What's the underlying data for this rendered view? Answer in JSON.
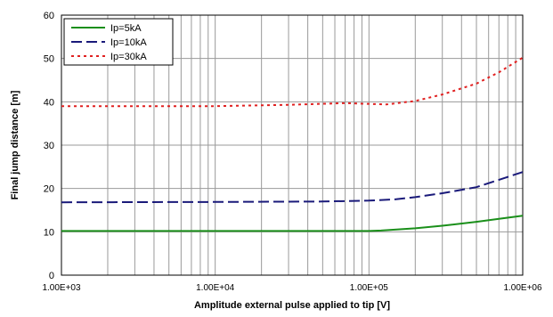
{
  "chart_data": {
    "type": "line",
    "title": "",
    "xlabel": "Amplitude external pulse applied to tip [V]",
    "ylabel": "Final jump distance  [m]",
    "xscale": "log",
    "xlim": [
      1000,
      1000000
    ],
    "ylim": [
      0,
      60
    ],
    "x_tick_values": [
      1000,
      10000,
      100000,
      1000000
    ],
    "x_tick_labels": [
      "1.00E+03",
      "1.00E+04",
      "1.00E+05",
      "1.00E+06"
    ],
    "y_tick_values": [
      0,
      10,
      20,
      30,
      40,
      50,
      60
    ],
    "y_tick_labels": [
      "0",
      "10",
      "20",
      "30",
      "40",
      "50",
      "60"
    ],
    "grid": true,
    "legend_position": "top-left",
    "series": [
      {
        "name": "Ip=5kA",
        "color": "#1a8f1a",
        "style": "solid",
        "x": [
          1000,
          10000,
          50000,
          100000,
          120000,
          200000,
          300000,
          500000,
          700000,
          1000000
        ],
        "y": [
          10.2,
          10.2,
          10.2,
          10.2,
          10.3,
          10.8,
          11.4,
          12.3,
          13.0,
          13.7
        ]
      },
      {
        "name": "Ip=10kA",
        "color": "#1a1a7a",
        "style": "dashed",
        "x": [
          1000,
          10000,
          50000,
          100000,
          150000,
          200000,
          300000,
          500000,
          700000,
          1000000
        ],
        "y": [
          16.8,
          16.9,
          17.0,
          17.2,
          17.5,
          18.0,
          18.9,
          20.3,
          22.0,
          23.8
        ]
      },
      {
        "name": "Ip=30kA",
        "color": "#e02020",
        "style": "dotted",
        "x": [
          1000,
          10000,
          30000,
          70000,
          130000,
          200000,
          300000,
          500000,
          700000,
          1000000
        ],
        "y": [
          39.0,
          39.0,
          39.3,
          39.7,
          39.4,
          40.2,
          41.7,
          44.2,
          46.8,
          50.2
        ]
      }
    ]
  }
}
